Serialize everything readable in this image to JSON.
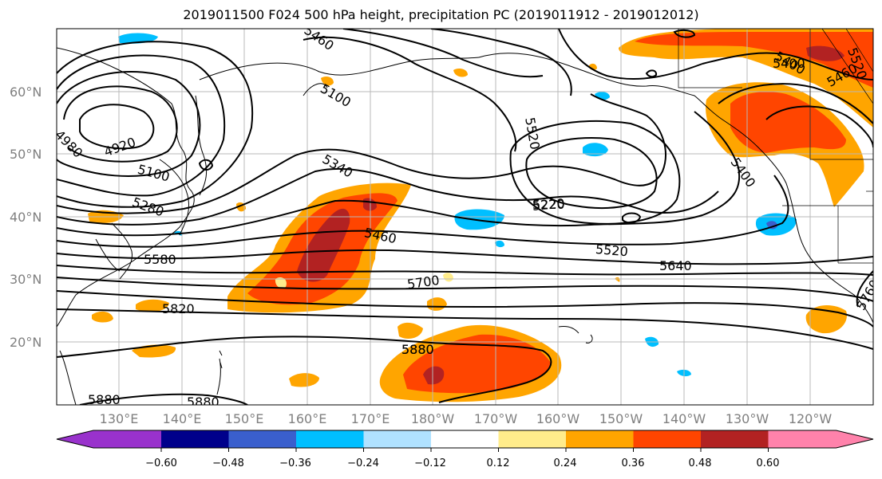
{
  "title": "2019011500 F024 500 hPa height, precipitation PC (2019011912 - 2019012012)",
  "lat_labels": [
    "60°N",
    "50°N",
    "40°N",
    "30°N",
    "20°N"
  ],
  "lon_labels": [
    "130°E",
    "140°E",
    "150°E",
    "160°E",
    "170°E",
    "180°W",
    "170°W",
    "160°W",
    "150°W",
    "140°W",
    "130°W",
    "120°W"
  ],
  "contour_labels": [
    "5460",
    "4980",
    "4920",
    "5100",
    "5280",
    "5580",
    "5820",
    "5880",
    "5880",
    "5880",
    "5340",
    "5460",
    "5700",
    "5880",
    "5100",
    "5520",
    "5220",
    "5220",
    "5520",
    "5640",
    "5400",
    "5400",
    "5400",
    "5460",
    "5520",
    "5760"
  ],
  "colorbar": {
    "ticks": [
      "−0.60",
      "−0.48",
      "−0.36",
      "−0.24",
      "−0.12",
      "0.12",
      "0.24",
      "0.36",
      "0.48",
      "0.60"
    ],
    "colors": [
      "#9932CC",
      "#00008B",
      "#3A5FCD",
      "#00BFFF",
      "#B0E2FF",
      "#FFFFFF",
      "#FFEC8B",
      "#FFA500",
      "#FF4500",
      "#B22222",
      "#FF82AB"
    ]
  }
}
